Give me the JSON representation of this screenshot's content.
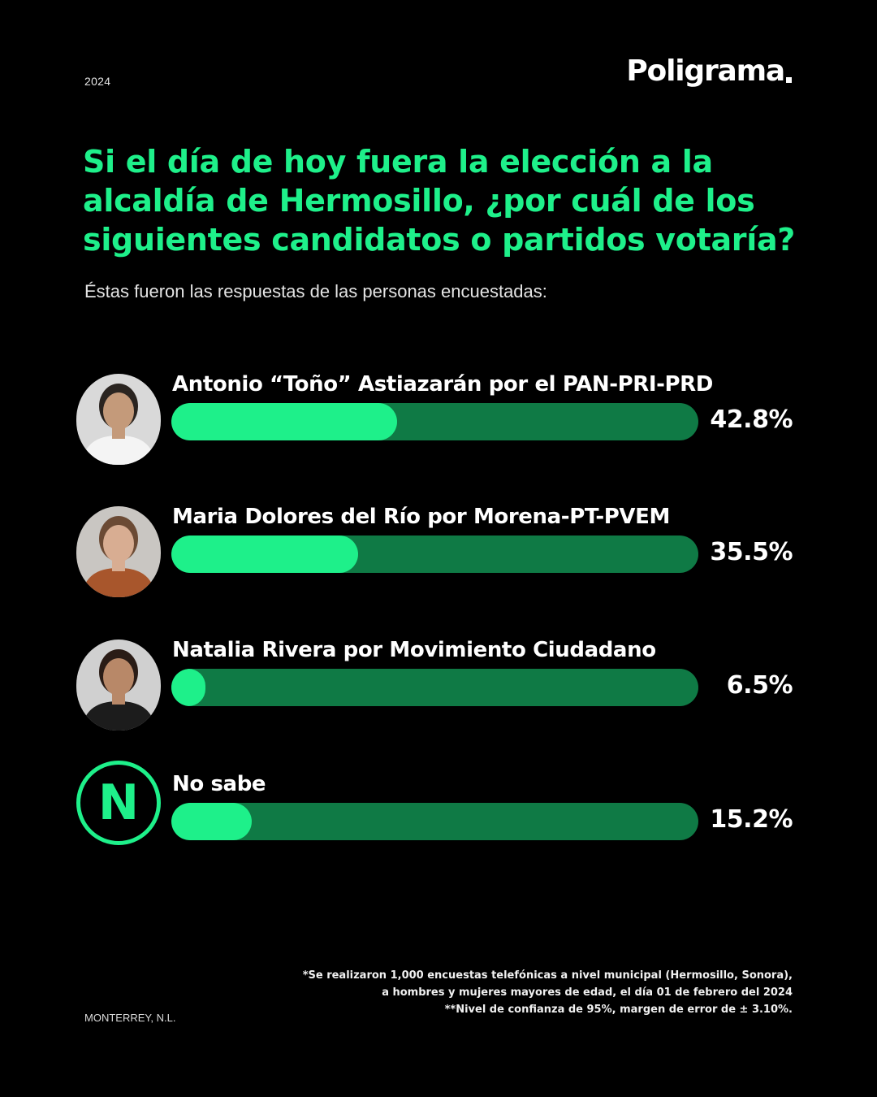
{
  "header": {
    "year": "2024",
    "brand": "Poligrama"
  },
  "title": "Si el día de hoy fuera la elección a la alcaldía de Hermosillo, ¿por cuál de los siguientes candidatos o partidos votaría?",
  "subtitle": "Éstas fueron las respuestas de las personas encuestadas:",
  "chart_data": {
    "type": "bar",
    "orientation": "horizontal",
    "categories": [
      "Antonio “Toño” Astiazarán por el PAN-PRI-PRD",
      "Maria Dolores del Río por Morena-PT-PVEM",
      "Natalia Rivera por Movimiento Ciudadano",
      "No sabe"
    ],
    "values": [
      42.8,
      35.5,
      6.5,
      15.2
    ],
    "value_labels": [
      "42.8%",
      "35.5%",
      "6.5%",
      "15.2%"
    ],
    "xlim": [
      0,
      100
    ],
    "grid": false,
    "legend": "none",
    "icons": [
      "candidate-photo",
      "candidate-photo",
      "candidate-photo",
      "n-badge"
    ],
    "icon_letter": "N"
  },
  "colors": {
    "background": "#000000",
    "accent": "#1ef08a",
    "track": "#0f7a45",
    "text": "#ffffff"
  },
  "footnote": {
    "line1": "*Se realizaron 1,000 encuestas telefónicas a nivel municipal (Hermosillo, Sonora),",
    "line2": "a hombres y mujeres mayores de edad, el día 01 de febrero del 2024",
    "line3": "**Nivel de confianza de 95%, margen de error de ± 3.10%."
  },
  "location": "MONTERREY, N.L."
}
